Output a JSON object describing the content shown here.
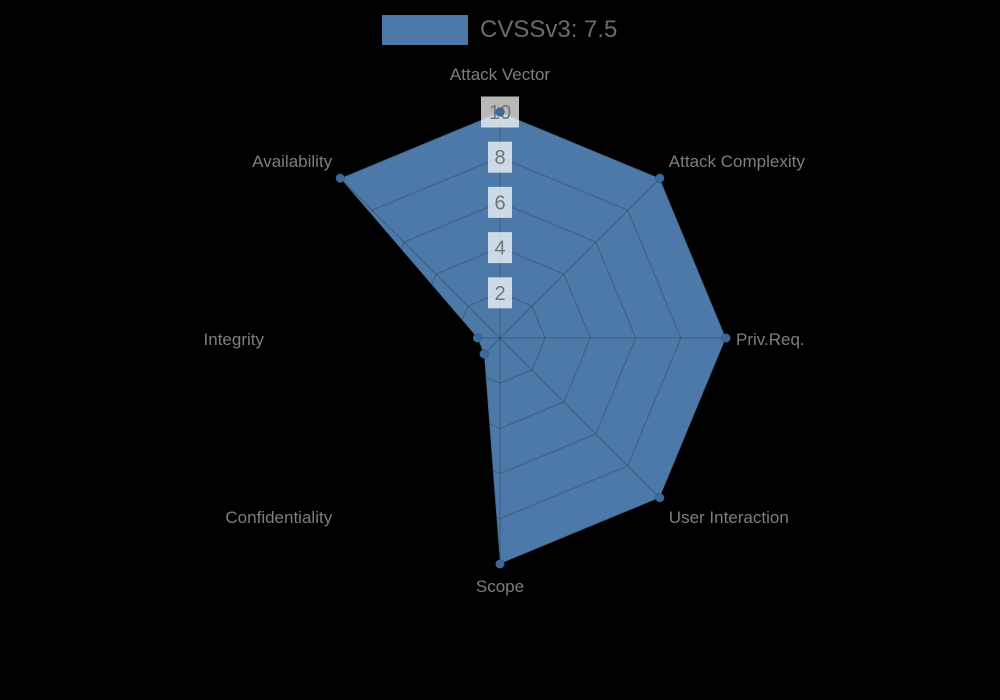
{
  "background": "#000000",
  "legend": {
    "label": "CVSSv3: 7.5",
    "swatch_color": "#4d79a8",
    "text_color": "#6b6b6b"
  },
  "chart_data": {
    "type": "radar",
    "title": "CVSSv3: 7.5",
    "categories": [
      "Attack Vector",
      "Attack Complexity",
      "Priv.Req.",
      "User Interaction",
      "Scope",
      "Confidentiality",
      "Integrity",
      "Availability"
    ],
    "series": [
      {
        "name": "CVSSv3: 7.5",
        "values": [
          10,
          10,
          10,
          10,
          10,
          1,
          1,
          10
        ]
      }
    ],
    "scale": {
      "min": 0,
      "max": 10,
      "ticks": [
        2,
        4,
        6,
        8,
        10
      ]
    },
    "grid": true,
    "legend_position": "top",
    "styles": {
      "fill_color": "#4d79a8",
      "fill_border_color": "rgba(0,0,0,0.15)",
      "point_color": "#3e6a9b",
      "grid_color": "rgba(0,0,0,0.18)",
      "tick_text_color": "#757575",
      "tick_backdrop_color": "rgba(255,255,255,0.72)",
      "axis_label_color": "#7e7e7e"
    }
  }
}
